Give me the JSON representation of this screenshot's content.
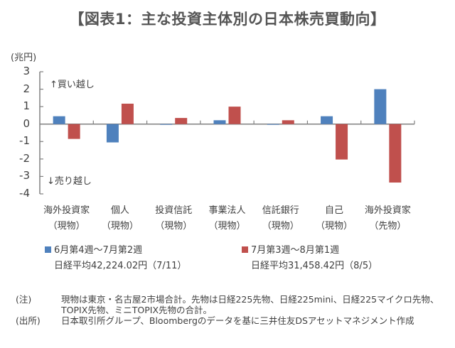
{
  "chart_data": {
    "type": "bar",
    "title": "【図表1：主な投資主体別の日本株売買動向】",
    "ylabel": "(兆円)",
    "ylim": [
      -4,
      3
    ],
    "yticks": [
      3,
      2,
      1,
      0,
      -1,
      -2,
      -3,
      -4
    ],
    "grid": false,
    "categories": [
      {
        "line1": "海外投資家",
        "line2": "（現物）"
      },
      {
        "line1": "個人",
        "line2": "（現物）"
      },
      {
        "line1": "投資信託",
        "line2": "（現物）"
      },
      {
        "line1": "事業法人",
        "line2": "（現物）"
      },
      {
        "line1": "信託銀行",
        "line2": "（現物）"
      },
      {
        "line1": "自己",
        "line2": "（現物）"
      },
      {
        "line1": "海外投資家",
        "line2": "（先物）"
      }
    ],
    "series": [
      {
        "name": "6月第4週～7月第2週",
        "note": "日経平均42,224.02円（7/11）",
        "color": "#4F81BD",
        "values": [
          0.45,
          -1.05,
          -0.03,
          0.22,
          0.0,
          0.45,
          2.0
        ]
      },
      {
        "name": "7月第3週～8月第1週",
        "note": "日経平均31,458.42円（8/5）",
        "color": "#C0504D",
        "values": [
          -0.85,
          1.17,
          0.35,
          1.0,
          0.22,
          -2.03,
          -3.35
        ]
      }
    ],
    "annotations": {
      "buy": "↑買い越し",
      "sell": "↓売り越し"
    },
    "legend_position": "bottom"
  },
  "notes": [
    {
      "label": "(注)",
      "text": "現物は東京・名古屋2市場合計。先物は日経225先物、日経225mini、日経225マイクロ先物、TOPIX先物、ミニTOPIX先物の合計。"
    },
    {
      "label": "(出所)",
      "text": "日本取引所グループ、Bloombergのデータを基に三井住友DSアセットマネジメント作成"
    }
  ],
  "colors": {
    "axis": "#808080",
    "text": "#404040"
  }
}
